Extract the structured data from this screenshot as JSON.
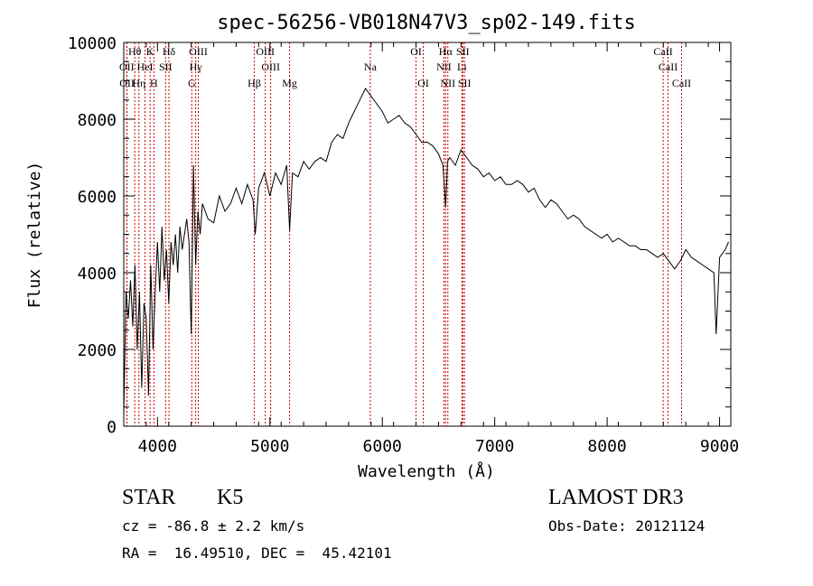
{
  "chart_data": {
    "type": "line",
    "title": "spec-56256-VB018N47V3_sp02-149.fits",
    "xlabel": "Wavelength (Å)",
    "ylabel": "Flux (relative)",
    "xlim": [
      3700,
      9100
    ],
    "ylim": [
      0,
      10000
    ],
    "x_ticks": [
      4000,
      5000,
      6000,
      7000,
      8000,
      9000
    ],
    "x_tick_labels": [
      "4000",
      "5000",
      "6000",
      "7000",
      "8000",
      "9000"
    ],
    "y_ticks": [
      0,
      2000,
      4000,
      6000,
      8000,
      10000
    ],
    "y_tick_labels": [
      "0",
      "2000",
      "4000",
      "6000",
      "8000",
      "10000"
    ],
    "grid": false,
    "line_color": "#000000",
    "marker_color": "#cc0000",
    "spectral_lines": [
      {
        "label": "Hθ",
        "wavelength": 3798,
        "row": 0
      },
      {
        "label": "K",
        "wavelength": 3934,
        "row": 0
      },
      {
        "label": "Hδ",
        "wavelength": 4102,
        "row": 0
      },
      {
        "label": "OIII",
        "wavelength": 4363,
        "row": 0
      },
      {
        "label": "OIII",
        "wavelength": 4959,
        "row": 0
      },
      {
        "label": "OI",
        "wavelength": 6300,
        "row": 0
      },
      {
        "label": "Hα",
        "wavelength": 6563,
        "row": 0
      },
      {
        "label": "SII",
        "wavelength": 6716,
        "row": 0
      },
      {
        "label": "CaII",
        "wavelength": 8498,
        "row": 0
      },
      {
        "label": "OII",
        "wavelength": 3727,
        "row": 1
      },
      {
        "label": "HeI",
        "wavelength": 3889,
        "row": 1
      },
      {
        "label": "SII",
        "wavelength": 4072,
        "row": 1
      },
      {
        "label": "Hγ",
        "wavelength": 4340,
        "row": 1
      },
      {
        "label": "OIII",
        "wavelength": 5007,
        "row": 1
      },
      {
        "label": "Na",
        "wavelength": 5893,
        "row": 1
      },
      {
        "label": "NII",
        "wavelength": 6548,
        "row": 1
      },
      {
        "label": "Li",
        "wavelength": 6708,
        "row": 1
      },
      {
        "label": "CaII",
        "wavelength": 8542,
        "row": 1
      },
      {
        "label": "OII",
        "wavelength": 3729,
        "row": 2
      },
      {
        "label": "Hη",
        "wavelength": 3835,
        "row": 2
      },
      {
        "label": "H",
        "wavelength": 3968,
        "row": 2
      },
      {
        "label": "G",
        "wavelength": 4305,
        "row": 2
      },
      {
        "label": "Hβ",
        "wavelength": 4861,
        "row": 2
      },
      {
        "label": "Mg",
        "wavelength": 5175,
        "row": 2
      },
      {
        "label": "OI",
        "wavelength": 6364,
        "row": 2
      },
      {
        "label": "NII",
        "wavelength": 6583,
        "row": 2
      },
      {
        "label": "SII",
        "wavelength": 6731,
        "row": 2
      },
      {
        "label": "CaII",
        "wavelength": 8662,
        "row": 2
      }
    ],
    "series": [
      {
        "x": [
          3700,
          3720,
          3740,
          3760,
          3780,
          3800,
          3820,
          3840,
          3860,
          3880,
          3900,
          3920,
          3940,
          3960,
          3980,
          4000,
          4020,
          4040,
          4060,
          4080,
          4100,
          4120,
          4140,
          4160,
          4180,
          4200,
          4220,
          4240,
          4260,
          4280,
          4300,
          4320,
          4340,
          4360,
          4380,
          4400,
          4450,
          4500,
          4550,
          4600,
          4650,
          4700,
          4750,
          4800,
          4850,
          4870,
          4900,
          4950,
          5000,
          5050,
          5100,
          5150,
          5175,
          5200,
          5250,
          5300,
          5350,
          5400,
          5450,
          5500,
          5550,
          5600,
          5650,
          5700,
          5750,
          5800,
          5850,
          5900,
          5950,
          6000,
          6050,
          6100,
          6150,
          6200,
          6250,
          6300,
          6350,
          6400,
          6450,
          6500,
          6540,
          6563,
          6580,
          6600,
          6650,
          6700,
          6750,
          6800,
          6850,
          6900,
          6950,
          7000,
          7050,
          7100,
          7150,
          7200,
          7250,
          7300,
          7350,
          7400,
          7450,
          7500,
          7550,
          7600,
          7650,
          7700,
          7750,
          7800,
          7850,
          7900,
          7950,
          8000,
          8050,
          8100,
          8150,
          8200,
          8250,
          8300,
          8350,
          8400,
          8450,
          8500,
          8550,
          8600,
          8650,
          8700,
          8750,
          8800,
          8850,
          8900,
          8950,
          8970,
          9000,
          9050,
          9080
        ],
        "y": [
          300,
          3500,
          2800,
          3800,
          2600,
          4200,
          2000,
          3500,
          1000,
          3200,
          2800,
          800,
          4200,
          2000,
          3500,
          4800,
          3500,
          5200,
          3800,
          4600,
          3200,
          4800,
          4200,
          5000,
          4000,
          5200,
          4600,
          5000,
          5400,
          4800,
          2400,
          6800,
          4200,
          5600,
          5000,
          5800,
          5400,
          5300,
          6000,
          5600,
          5800,
          6200,
          5800,
          6300,
          5900,
          5000,
          6200,
          6600,
          6000,
          6600,
          6300,
          6800,
          5100,
          6600,
          6500,
          6900,
          6700,
          6900,
          7000,
          6900,
          7400,
          7600,
          7500,
          7900,
          8200,
          8500,
          8800,
          8600,
          8400,
          8200,
          7900,
          8000,
          8100,
          7900,
          7800,
          7600,
          7400,
          7400,
          7300,
          7100,
          6800,
          5700,
          6900,
          7000,
          6800,
          7200,
          7000,
          6800,
          6700,
          6500,
          6600,
          6400,
          6500,
          6300,
          6300,
          6400,
          6300,
          6100,
          6200,
          5900,
          5700,
          5900,
          5800,
          5600,
          5400,
          5500,
          5400,
          5200,
          5100,
          5000,
          4900,
          5000,
          4800,
          4900,
          4800,
          4700,
          4700,
          4600,
          4600,
          4500,
          4400,
          4500,
          4300,
          4100,
          4300,
          4600,
          4400,
          4300,
          4200,
          4100,
          4000,
          2400,
          4400,
          4600,
          4800
        ]
      }
    ]
  },
  "info": {
    "object_class": "STAR",
    "subclass": "K5",
    "survey": "LAMOST DR3",
    "velocity": "cz = -86.8 ± 2.2 km/s",
    "obs_date": "Obs-Date: 20121124",
    "coords": "RA =  16.49510, DEC =  45.42101"
  }
}
